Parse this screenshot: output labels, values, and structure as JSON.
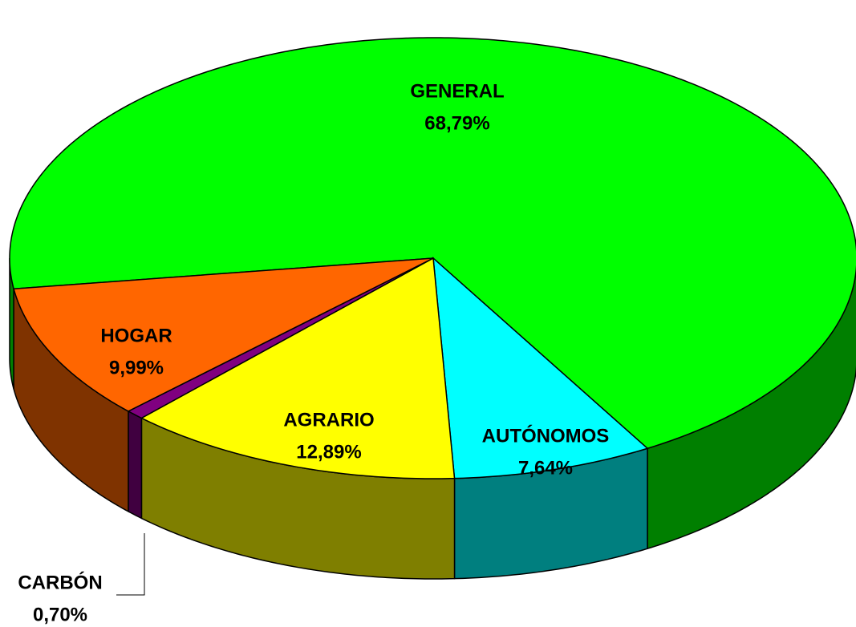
{
  "chart_data": {
    "type": "pie3d",
    "categories": [
      "GENERAL",
      "AUTÓNOMOS",
      "AGRARIO",
      "CARBÓN",
      "HOGAR"
    ],
    "values": [
      68.79,
      7.64,
      12.89,
      0.7,
      9.99
    ],
    "value_labels": [
      "68,79%",
      "7,64%",
      "12,89%",
      "0,70%",
      "9,99%"
    ],
    "colors": [
      "#00ff00",
      "#00ffff",
      "#ffff00",
      "#800080",
      "#ff6600"
    ]
  }
}
